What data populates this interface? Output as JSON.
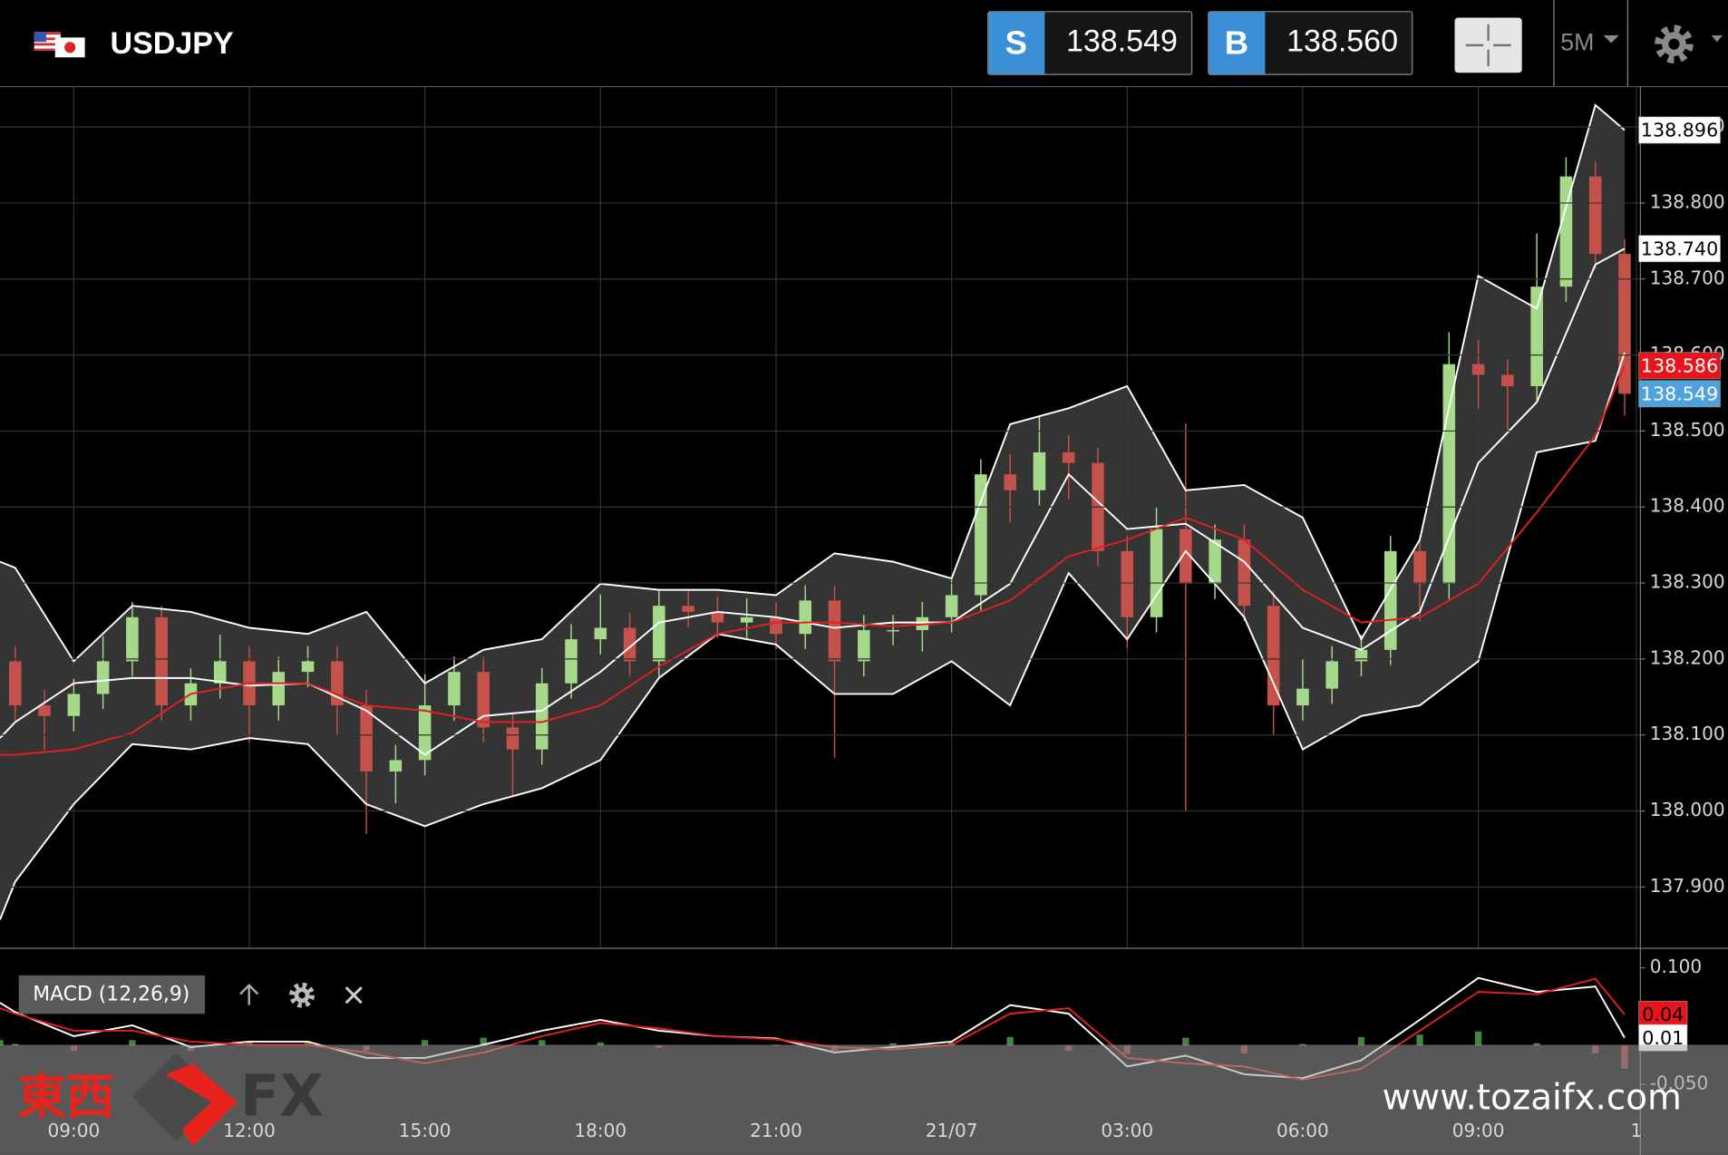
{
  "header": {
    "symbol": "USDJPY",
    "sell": {
      "label": "S",
      "price": "138.549"
    },
    "buy": {
      "label": "B",
      "price": "138.560"
    },
    "timeframe": "5M"
  },
  "chart_data": [
    {
      "type": "candlestick",
      "x": [
        8,
        8.5,
        9,
        9.5,
        10,
        10.5,
        11,
        11.5,
        12,
        12.5,
        13,
        13.5,
        14,
        14.5,
        15,
        15.5,
        16,
        16.5,
        17,
        17.5,
        18,
        18.5,
        19,
        19.5,
        20,
        20.5,
        21,
        21.5,
        22,
        22.5,
        23,
        23.5,
        24,
        24.5,
        25,
        25.5,
        26,
        26.5,
        27,
        27.5,
        28,
        28.5,
        29,
        29.5,
        30,
        30.5,
        31,
        31.5,
        32,
        32.5,
        33,
        33.5,
        34,
        34.5,
        35,
        35.5
      ],
      "open": [
        138.197,
        138.139,
        138.125,
        138.154,
        138.197,
        138.255,
        138.139,
        138.168,
        138.197,
        138.139,
        138.183,
        138.197,
        138.139,
        138.052,
        138.067,
        138.139,
        138.183,
        138.11,
        138.081,
        138.168,
        138.226,
        138.241,
        138.197,
        138.27,
        138.262,
        138.248,
        138.255,
        138.233,
        138.277,
        138.197,
        138.238,
        138.238,
        138.255,
        138.284,
        138.443,
        138.422,
        138.472,
        138.458,
        138.342,
        138.255,
        138.371,
        138.299,
        138.357,
        138.27,
        138.139,
        138.161,
        138.197,
        138.212,
        138.342,
        138.299,
        138.588,
        138.574,
        138.559,
        138.69,
        138.835,
        138.733
      ],
      "high": [
        138.217,
        138.159,
        138.174,
        138.23,
        138.275,
        138.27,
        138.188,
        138.232,
        138.217,
        138.203,
        138.217,
        138.217,
        138.159,
        138.087,
        138.18,
        138.203,
        138.203,
        138.13,
        138.188,
        138.246,
        138.285,
        138.261,
        138.29,
        138.29,
        138.282,
        138.28,
        138.275,
        138.297,
        138.297,
        138.258,
        138.258,
        138.275,
        138.304,
        138.463,
        138.47,
        138.52,
        138.495,
        138.478,
        138.362,
        138.4,
        138.51,
        138.377,
        138.377,
        138.29,
        138.2,
        138.217,
        138.232,
        138.362,
        138.362,
        138.63,
        138.62,
        138.594,
        138.76,
        138.86,
        138.855,
        138.753
      ],
      "low": [
        138.119,
        138.08,
        138.105,
        138.134,
        138.177,
        138.119,
        138.119,
        138.148,
        138.09,
        138.119,
        138.163,
        138.1,
        137.97,
        138.01,
        138.047,
        138.119,
        138.09,
        138.02,
        138.061,
        138.148,
        138.206,
        138.177,
        138.177,
        138.242,
        138.228,
        138.228,
        138.213,
        138.213,
        138.07,
        138.177,
        138.218,
        138.21,
        138.235,
        138.264,
        138.38,
        138.402,
        138.41,
        138.322,
        138.215,
        138.235,
        138.0,
        138.279,
        138.25,
        138.1,
        138.119,
        138.141,
        138.177,
        138.192,
        138.25,
        138.279,
        138.53,
        138.5,
        138.539,
        138.67,
        138.713,
        138.52
      ],
      "close": [
        138.139,
        138.125,
        138.154,
        138.197,
        138.255,
        138.139,
        138.168,
        138.197,
        138.139,
        138.183,
        138.197,
        138.139,
        138.052,
        138.067,
        138.139,
        138.183,
        138.11,
        138.081,
        138.168,
        138.226,
        138.241,
        138.197,
        138.27,
        138.262,
        138.248,
        138.255,
        138.233,
        138.277,
        138.197,
        138.238,
        138.238,
        138.255,
        138.284,
        138.443,
        138.422,
        138.472,
        138.458,
        138.342,
        138.255,
        138.371,
        138.299,
        138.357,
        138.27,
        138.139,
        138.161,
        138.197,
        138.212,
        138.342,
        138.299,
        138.588,
        138.574,
        138.559,
        138.69,
        138.835,
        138.733,
        138.549
      ],
      "up_color": "#a6d98a",
      "down_color": "#c4514a",
      "indicator_x": [
        7.74,
        8,
        9,
        10,
        11,
        12,
        13,
        14,
        15,
        16,
        17,
        18,
        19,
        20,
        21,
        22,
        23,
        24,
        25,
        26,
        27,
        28,
        29,
        30,
        31,
        32,
        33,
        34,
        35,
        35.5
      ],
      "bollinger": {
        "upper": [
          138.328,
          138.32,
          138.197,
          138.27,
          138.262,
          138.241,
          138.233,
          138.262,
          138.168,
          138.212,
          138.226,
          138.299,
          138.291,
          138.291,
          138.284,
          138.339,
          138.328,
          138.306,
          138.509,
          138.53,
          138.559,
          138.422,
          138.429,
          138.386,
          138.226,
          138.357,
          138.704,
          138.661,
          138.929,
          138.896
        ],
        "middle": [
          138.096,
          138.117,
          138.168,
          138.175,
          138.175,
          138.165,
          138.168,
          138.132,
          138.074,
          138.125,
          138.132,
          138.183,
          138.248,
          138.262,
          138.255,
          138.241,
          138.248,
          138.248,
          138.299,
          138.443,
          138.371,
          138.378,
          138.328,
          138.241,
          138.212,
          138.262,
          138.458,
          138.538,
          138.719,
          138.74
        ],
        "lower": [
          137.857,
          137.907,
          138.009,
          138.088,
          138.081,
          138.096,
          138.088,
          138.009,
          137.98,
          138.009,
          138.03,
          138.067,
          138.175,
          138.233,
          138.219,
          138.154,
          138.154,
          138.197,
          138.139,
          138.313,
          138.226,
          138.342,
          138.255,
          138.081,
          138.125,
          138.139,
          138.197,
          138.472,
          138.487,
          138.603
        ],
        "color": "#ffffff",
        "fill": "#3a3a3a"
      },
      "moving_average": {
        "values": [
          138.074,
          138.074,
          138.081,
          138.103,
          138.154,
          138.168,
          138.168,
          138.139,
          138.132,
          138.117,
          138.117,
          138.139,
          138.19,
          138.233,
          138.248,
          138.248,
          138.243,
          138.248,
          138.277,
          138.335,
          138.357,
          138.386,
          138.357,
          138.291,
          138.248,
          138.255,
          138.299,
          138.393,
          138.494,
          138.586
        ],
        "color": "#e02020"
      },
      "xlim": [
        7.74,
        35.76
      ],
      "ylim": [
        137.82,
        138.954
      ],
      "xticks": [
        {
          "value": 9,
          "label": "09:00"
        },
        {
          "value": 12,
          "label": "12:00"
        },
        {
          "value": 15,
          "label": "15:00"
        },
        {
          "value": 18,
          "label": "18:00"
        },
        {
          "value": 21,
          "label": "21:00"
        },
        {
          "value": 24,
          "label": "21/07"
        },
        {
          "value": 27,
          "label": "03:00"
        },
        {
          "value": 30,
          "label": "06:00"
        },
        {
          "value": 33,
          "label": "09:00"
        },
        {
          "value": 35.7,
          "label": "1"
        }
      ],
      "yticks": [
        {
          "value": 137.9,
          "label": "137.900"
        },
        {
          "value": 138,
          "label": "138.000"
        },
        {
          "value": 138.1,
          "label": "138.100"
        },
        {
          "value": 138.2,
          "label": "138.200"
        },
        {
          "value": 138.3,
          "label": "138.300"
        },
        {
          "value": 138.4,
          "label": "138.400"
        },
        {
          "value": 138.5,
          "label": "138.500"
        },
        {
          "value": 138.6,
          "label": "138.600"
        },
        {
          "value": 138.7,
          "label": "138.700"
        },
        {
          "value": 138.8,
          "label": "138.800"
        },
        {
          "value": 138.9,
          "label": "138.900"
        }
      ],
      "grid": true,
      "price_tags": [
        {
          "value": 138.896,
          "label": "138.896",
          "color": "#ffffff",
          "text_color": "#000000"
        },
        {
          "value": 138.74,
          "label": "138.740",
          "color": "#ffffff",
          "text_color": "#000000"
        },
        {
          "value": 138.586,
          "label": "138.586",
          "color": "#e8141c",
          "text_color": "#ffffff"
        },
        {
          "value": 138.549,
          "label": "138.549",
          "color": "#4fa3dc",
          "text_color": "#ffffff"
        }
      ]
    },
    {
      "type": "line",
      "title": "MACD (12,26,9)",
      "x": [
        7.74,
        8,
        9,
        10,
        11,
        12,
        13,
        14,
        15,
        16,
        17,
        18,
        19,
        20,
        21,
        22,
        23,
        24,
        25,
        26,
        27,
        28,
        29,
        30,
        31,
        32,
        33,
        34,
        35,
        35.5
      ],
      "series": [
        {
          "color": "#ffffff",
          "values": [
            0.055,
            0.043,
            0.012,
            0.026,
            -0.002,
            0.005,
            0.005,
            -0.016,
            -0.016,
            0.001,
            0.019,
            0.033,
            0.019,
            0.012,
            0.009,
            -0.009,
            -0.002,
            0.005,
            0.052,
            0.041,
            -0.027,
            -0.013,
            -0.037,
            -0.042,
            -0.019,
            0.033,
            0.087,
            0.069,
            0.076,
            0.01
          ]
        },
        {
          "color": "#e02020",
          "values": [
            0.048,
            0.041,
            0.019,
            0.019,
            0.005,
            0.001,
            0.001,
            -0.009,
            -0.023,
            -0.009,
            0.012,
            0.029,
            0.022,
            0.012,
            0.008,
            -0.002,
            -0.005,
            0.001,
            0.041,
            0.048,
            -0.016,
            -0.023,
            -0.027,
            -0.044,
            -0.03,
            0.019,
            0.069,
            0.066,
            0.086,
            0.04
          ]
        }
      ],
      "histogram": {
        "values": [
          0.007,
          0.002,
          -0.007,
          0.007,
          -0.007,
          0.004,
          0.004,
          -0.007,
          0.007,
          0.01,
          0.007,
          0.004,
          -0.003,
          0,
          0.001,
          -0.007,
          0.003,
          0.004,
          0.011,
          -0.007,
          -0.011,
          0.01,
          -0.01,
          0.002,
          0.011,
          0.014,
          0.018,
          0.003,
          -0.01,
          -0.03
        ],
        "up_color": "#3f8a3a",
        "down_color": "#8a3030"
      },
      "xlim": [
        7.74,
        35.76
      ],
      "ylim": [
        -0.087,
        0.123
      ],
      "yticks": [
        {
          "value": 0.1,
          "label": "0.100"
        },
        0,
        {
          "value": -0.05,
          "label": "-0.050"
        }
      ],
      "grid": false,
      "price_tags": [
        {
          "value": 0.04,
          "label": "0.04",
          "color": "#e8141c",
          "text_color": "#000000"
        },
        {
          "value": 0.01,
          "label": "0.01",
          "color": "#ffffff",
          "text_color": "#000000"
        }
      ]
    }
  ],
  "watermark": {
    "brand_cjk": "東西",
    "brand_latin": "FX",
    "url": "www.tozaifx.com"
  }
}
